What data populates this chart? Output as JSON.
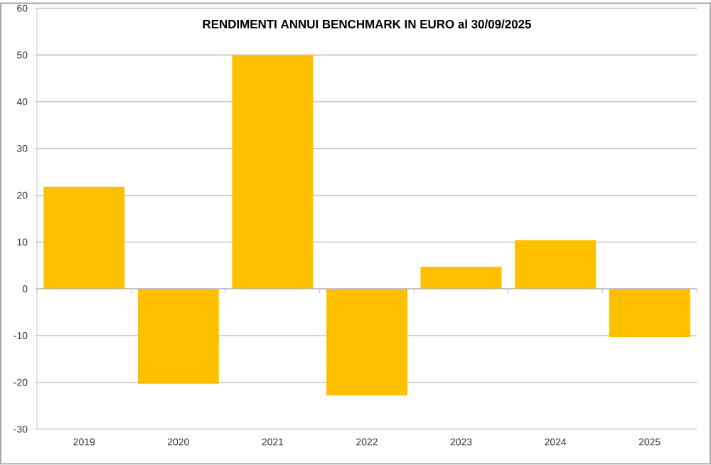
{
  "chart_data": {
    "type": "bar",
    "title": "RENDIMENTI ANNUI BENCHMARK IN EURO al 30/09/2025",
    "categories": [
      "2019",
      "2020",
      "2021",
      "2022",
      "2023",
      "2024",
      "2025"
    ],
    "values": [
      21.8,
      -20.3,
      50,
      -22.8,
      4.7,
      10.4,
      -10.3
    ],
    "color": "#ffc000",
    "ylim": [
      -30,
      60
    ],
    "yticks": [
      -30,
      -20,
      -10,
      0,
      10,
      20,
      30,
      40,
      50,
      60
    ],
    "grid": "y"
  }
}
